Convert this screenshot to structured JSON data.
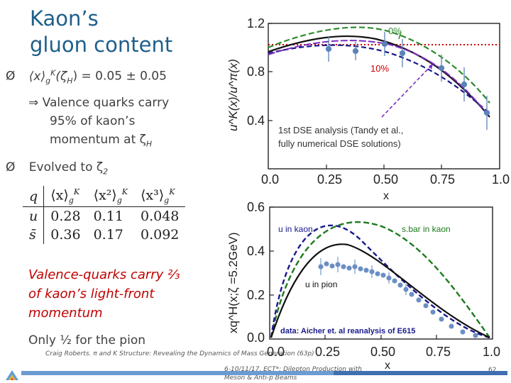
{
  "slide": {
    "title_line1": "Kaon’s",
    "title_line2": "gluon content",
    "bullet1_symbol": "Ø",
    "bullet1_prefix": "⟨x⟩",
    "bullet1_sub": "g",
    "bullet1_sup": "K",
    "bullet1_rest": "(ζ",
    "bullet1_rest_sub": "H",
    "bullet1_value": ") = 0.05 ± 0.05",
    "implies_arrow": "⇒",
    "implies_line1": "Valence quarks carry",
    "implies_line2": "95% of kaon’s",
    "implies_line3": "momentum at ζ",
    "implies_line3_sub": "H",
    "bullet2_symbol": "Ø",
    "bullet2_text": "Evolved to ζ",
    "bullet2_sub": "2",
    "valence_line1": "Valence-quarks carry ⅔",
    "valence_line2": "of kaon’s light-front",
    "valence_line3": "momentum",
    "pion_note": "Only ½ for the pion",
    "footer_left": "Craig Roberts. π and K Structure: Revealing the Dynamics of Mass Generation (63p)",
    "footer_mid_line1": "6-10/11/17, ECT*: Dilepton Production with",
    "footer_mid_line2": "Meson & Anti-p Beams",
    "page_number": "62"
  },
  "table": {
    "header": [
      "q",
      "⟨x⟩g^K",
      "⟨x²⟩g^K",
      "⟨x³⟩g^K"
    ],
    "rows": [
      {
        "q": "u",
        "m1": "0.28",
        "m2": "0.11",
        "m3": "0.048"
      },
      {
        "q": "s̄",
        "m1": "0.36",
        "m2": "0.17",
        "m3": "0.092"
      }
    ]
  },
  "top_plot": {
    "ylabel": "u^K(x)/u^π(x)",
    "xlabel": "x",
    "xticks": [
      "0.0",
      "0.25",
      "0.50",
      "0.75",
      "1.0"
    ],
    "yticks": [
      "1.2",
      "0.8",
      "0.4"
    ],
    "annotation_0": "0%",
    "annotation_10": "10%",
    "annotation_dse_line1": "1st DSE analysis (Tandy et al.,",
    "annotation_dse_line2": "fully numerical DSE solutions)",
    "colors": {
      "green": "#2e8b2e",
      "purple": "#7b2fbf",
      "black": "#111111",
      "navy": "#1a1a8c",
      "red": "#cc0000",
      "data": "#5b84b8"
    }
  },
  "bottom_plot": {
    "ylabel": "xq^H(x;ζ =5.2GeV)",
    "xlabel": "x",
    "xticks": [
      "0.0",
      "0.25",
      "0.50",
      "0.75",
      "1.0"
    ],
    "yticks": [
      "0.6",
      "0.4",
      "0.2",
      "0.0"
    ],
    "label_u_kaon": "u in kaon",
    "label_sbar_kaon": "s.bar in kaon",
    "label_u_pion": "u in pion",
    "label_data": "data: Aicher et. al reanalysis of E615",
    "colors": {
      "green": "#1e7a1e",
      "navy": "#1a1a8c",
      "black": "#111111",
      "data": "#6b8fc4"
    }
  }
}
